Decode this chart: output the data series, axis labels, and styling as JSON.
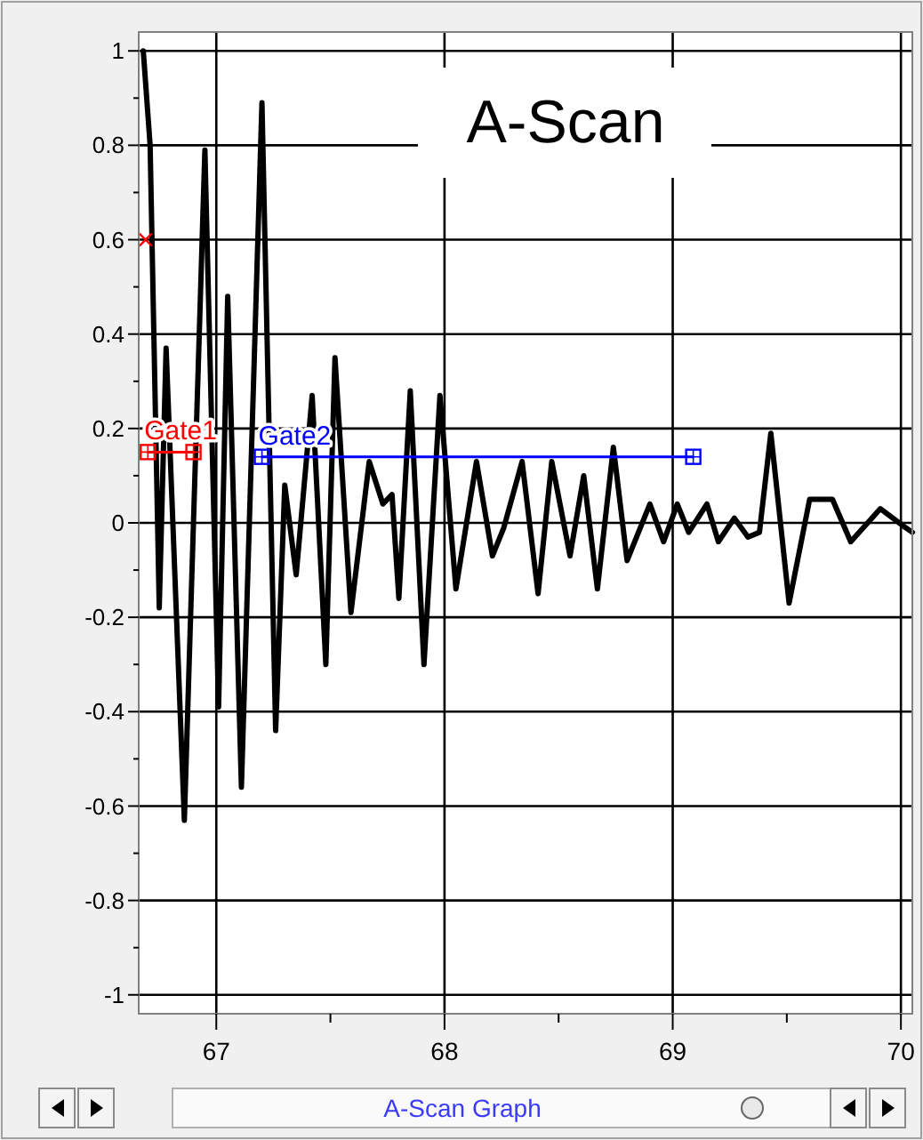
{
  "chart_data": {
    "type": "line",
    "title": "A-Scan",
    "annotations": [
      "A-Scan Graph"
    ],
    "xlim": [
      66.66,
      70.05
    ],
    "xticks": [
      67,
      {
        "value": 67.5,
        "label": null
      },
      68,
      {
        "value": 68.5,
        "label": null
      },
      69,
      {
        "value": 69.5,
        "label": null
      },
      70
    ],
    "ylim": [
      -1.04,
      1.04
    ],
    "yticks": [
      -1,
      {
        "value": -0.9,
        "label": null
      },
      -0.8,
      {
        "value": -0.7,
        "label": null
      },
      -0.6,
      {
        "value": -0.5,
        "label": null
      },
      -0.4,
      {
        "value": -0.3,
        "label": null
      },
      -0.2,
      {
        "value": -0.1,
        "label": null
      },
      0,
      {
        "value": 0.1,
        "label": null
      },
      0.2,
      {
        "value": 0.3,
        "label": null
      },
      0.4,
      {
        "value": 0.5,
        "label": null
      },
      0.6,
      {
        "value": 0.7,
        "label": null
      },
      0.8,
      {
        "value": 0.9,
        "label": null
      },
      1
    ],
    "grid": true,
    "series": [
      {
        "color": "#000000",
        "marker": "none",
        "x": [
          66.68,
          66.71,
          66.75,
          66.78,
          66.86,
          66.95,
          67.01,
          67.05,
          67.11,
          67.2,
          67.26,
          67.3,
          67.35,
          67.42,
          67.48,
          67.52,
          67.59,
          67.67,
          67.73,
          67.77,
          67.8,
          67.85,
          67.91,
          67.98,
          68.05,
          68.14,
          68.21,
          68.26,
          68.34,
          68.41,
          68.47,
          68.55,
          68.61,
          68.67,
          68.74,
          68.8,
          68.9,
          68.96,
          69.02,
          69.07,
          69.15,
          69.2,
          69.27,
          69.33,
          69.38,
          69.43,
          69.51,
          69.6,
          69.7,
          69.78,
          69.91,
          70.02,
          70.05
        ],
        "values": [
          1.0,
          0.8,
          -0.18,
          0.37,
          -0.63,
          0.79,
          -0.39,
          0.48,
          -0.56,
          0.89,
          -0.44,
          0.08,
          -0.11,
          0.27,
          -0.3,
          0.35,
          -0.19,
          0.13,
          0.04,
          0.06,
          -0.16,
          0.28,
          -0.3,
          0.27,
          -0.14,
          0.13,
          -0.07,
          -0.01,
          0.13,
          -0.15,
          0.13,
          -0.07,
          0.1,
          -0.14,
          0.16,
          -0.08,
          0.04,
          -0.04,
          0.04,
          -0.02,
          0.04,
          -0.04,
          0.01,
          -0.03,
          -0.02,
          0.19,
          -0.17,
          0.05,
          0.05,
          -0.04,
          0.03,
          -0.01,
          -0.02
        ]
      },
      {
        "type": "line",
        "name": "Gate1",
        "color": "#ff0000",
        "marker": "square",
        "x": [
          66.7,
          66.9
        ],
        "values": [
          0.15,
          0.15
        ]
      },
      {
        "type": "line",
        "name": "Gate2",
        "color": "#0000ff",
        "marker": "square",
        "x": [
          67.2,
          69.09
        ],
        "values": [
          0.14,
          0.14
        ]
      },
      {
        "type": "scatter",
        "color": "#ff0000",
        "marker": "cross",
        "x": [
          66.69
        ],
        "values": [
          0.6
        ]
      }
    ]
  }
}
